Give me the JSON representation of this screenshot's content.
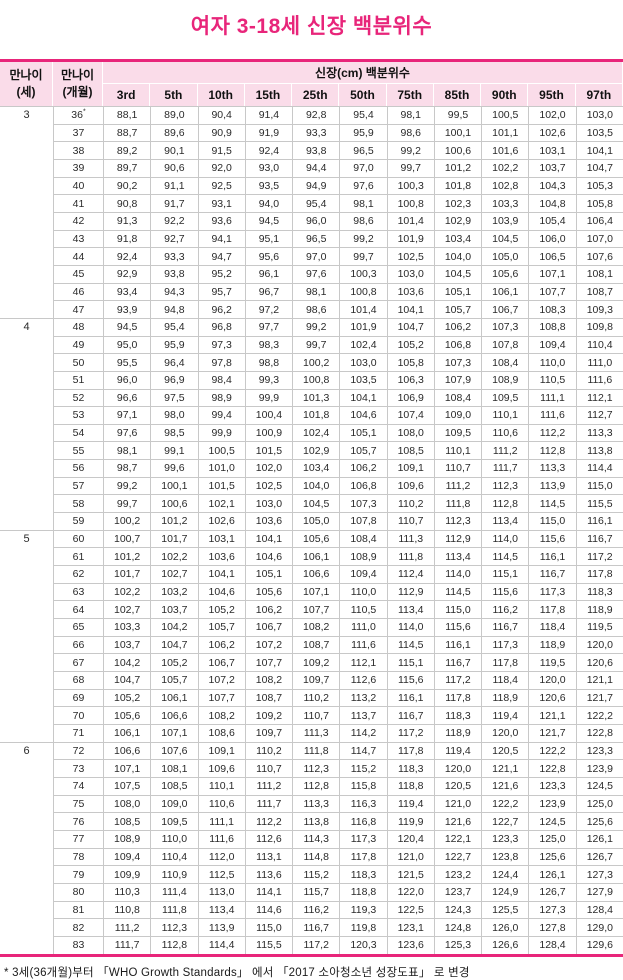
{
  "title": "여자 3-18세 신장 백분위수",
  "footnote": "* 3세(36개월)부터 「WHO Growth Standards」 에서 「2017 소아청소년 성장도표」 로 변경",
  "colors": {
    "accent": "#e8257a",
    "header_bg": "#fadce9",
    "grid": "#c8c8c8"
  },
  "table": {
    "header": {
      "age_years_line1": "만나이",
      "age_years_line2": "(세)",
      "age_months_line1": "만나이",
      "age_months_line2": "(개월)",
      "span_label": "신장(cm) 백분위수",
      "percentiles": [
        "3rd",
        "5th",
        "10th",
        "15th",
        "25th",
        "50th",
        "75th",
        "85th",
        "90th",
        "95th",
        "97th"
      ]
    },
    "rows": [
      {
        "year": "3",
        "year_span": 12,
        "month": "36",
        "month_sup": "*",
        "values": [
          "88,1",
          "89,0",
          "90,4",
          "91,4",
          "92,8",
          "95,4",
          "98,1",
          "99,5",
          "100,5",
          "102,0",
          "103,0"
        ]
      },
      {
        "month": "37",
        "values": [
          "88,7",
          "89,6",
          "90,9",
          "91,9",
          "93,3",
          "95,9",
          "98,6",
          "100,1",
          "101,1",
          "102,6",
          "103,5"
        ]
      },
      {
        "month": "38",
        "values": [
          "89,2",
          "90,1",
          "91,5",
          "92,4",
          "93,8",
          "96,5",
          "99,2",
          "100,6",
          "101,6",
          "103,1",
          "104,1"
        ]
      },
      {
        "month": "39",
        "values": [
          "89,7",
          "90,6",
          "92,0",
          "93,0",
          "94,4",
          "97,0",
          "99,7",
          "101,2",
          "102,2",
          "103,7",
          "104,7"
        ]
      },
      {
        "month": "40",
        "values": [
          "90,2",
          "91,1",
          "92,5",
          "93,5",
          "94,9",
          "97,6",
          "100,3",
          "101,8",
          "102,8",
          "104,3",
          "105,3"
        ]
      },
      {
        "month": "41",
        "values": [
          "90,8",
          "91,7",
          "93,1",
          "94,0",
          "95,4",
          "98,1",
          "100,8",
          "102,3",
          "103,3",
          "104,8",
          "105,8"
        ]
      },
      {
        "month": "42",
        "values": [
          "91,3",
          "92,2",
          "93,6",
          "94,5",
          "96,0",
          "98,6",
          "101,4",
          "102,9",
          "103,9",
          "105,4",
          "106,4"
        ]
      },
      {
        "month": "43",
        "values": [
          "91,8",
          "92,7",
          "94,1",
          "95,1",
          "96,5",
          "99,2",
          "101,9",
          "103,4",
          "104,5",
          "106,0",
          "107,0"
        ]
      },
      {
        "month": "44",
        "values": [
          "92,4",
          "93,3",
          "94,7",
          "95,6",
          "97,0",
          "99,7",
          "102,5",
          "104,0",
          "105,0",
          "106,5",
          "107,6"
        ]
      },
      {
        "month": "45",
        "values": [
          "92,9",
          "93,8",
          "95,2",
          "96,1",
          "97,6",
          "100,3",
          "103,0",
          "104,5",
          "105,6",
          "107,1",
          "108,1"
        ]
      },
      {
        "month": "46",
        "values": [
          "93,4",
          "94,3",
          "95,7",
          "96,7",
          "98,1",
          "100,8",
          "103,6",
          "105,1",
          "106,1",
          "107,7",
          "108,7"
        ]
      },
      {
        "month": "47",
        "values": [
          "93,9",
          "94,8",
          "96,2",
          "97,2",
          "98,6",
          "101,4",
          "104,1",
          "105,7",
          "106,7",
          "108,3",
          "109,3"
        ]
      },
      {
        "year": "4",
        "year_span": 12,
        "month": "48",
        "values": [
          "94,5",
          "95,4",
          "96,8",
          "97,7",
          "99,2",
          "101,9",
          "104,7",
          "106,2",
          "107,3",
          "108,8",
          "109,8"
        ]
      },
      {
        "month": "49",
        "values": [
          "95,0",
          "95,9",
          "97,3",
          "98,3",
          "99,7",
          "102,4",
          "105,2",
          "106,8",
          "107,8",
          "109,4",
          "110,4"
        ]
      },
      {
        "month": "50",
        "values": [
          "95,5",
          "96,4",
          "97,8",
          "98,8",
          "100,2",
          "103,0",
          "105,8",
          "107,3",
          "108,4",
          "110,0",
          "111,0"
        ]
      },
      {
        "month": "51",
        "values": [
          "96,0",
          "96,9",
          "98,4",
          "99,3",
          "100,8",
          "103,5",
          "106,3",
          "107,9",
          "108,9",
          "110,5",
          "111,6"
        ]
      },
      {
        "month": "52",
        "values": [
          "96,6",
          "97,5",
          "98,9",
          "99,9",
          "101,3",
          "104,1",
          "106,9",
          "108,4",
          "109,5",
          "111,1",
          "112,1"
        ]
      },
      {
        "month": "53",
        "values": [
          "97,1",
          "98,0",
          "99,4",
          "100,4",
          "101,8",
          "104,6",
          "107,4",
          "109,0",
          "110,1",
          "111,6",
          "112,7"
        ]
      },
      {
        "month": "54",
        "values": [
          "97,6",
          "98,5",
          "99,9",
          "100,9",
          "102,4",
          "105,1",
          "108,0",
          "109,5",
          "110,6",
          "112,2",
          "113,3"
        ]
      },
      {
        "month": "55",
        "values": [
          "98,1",
          "99,1",
          "100,5",
          "101,5",
          "102,9",
          "105,7",
          "108,5",
          "110,1",
          "111,2",
          "112,8",
          "113,8"
        ]
      },
      {
        "month": "56",
        "values": [
          "98,7",
          "99,6",
          "101,0",
          "102,0",
          "103,4",
          "106,2",
          "109,1",
          "110,7",
          "111,7",
          "113,3",
          "114,4"
        ]
      },
      {
        "month": "57",
        "values": [
          "99,2",
          "100,1",
          "101,5",
          "102,5",
          "104,0",
          "106,8",
          "109,6",
          "111,2",
          "112,3",
          "113,9",
          "115,0"
        ]
      },
      {
        "month": "58",
        "values": [
          "99,7",
          "100,6",
          "102,1",
          "103,0",
          "104,5",
          "107,3",
          "110,2",
          "111,8",
          "112,8",
          "114,5",
          "115,5"
        ]
      },
      {
        "month": "59",
        "values": [
          "100,2",
          "101,2",
          "102,6",
          "103,6",
          "105,0",
          "107,8",
          "110,7",
          "112,3",
          "113,4",
          "115,0",
          "116,1"
        ]
      },
      {
        "year": "5",
        "year_span": 12,
        "month": "60",
        "values": [
          "100,7",
          "101,7",
          "103,1",
          "104,1",
          "105,6",
          "108,4",
          "111,3",
          "112,9",
          "114,0",
          "115,6",
          "116,7"
        ]
      },
      {
        "month": "61",
        "values": [
          "101,2",
          "102,2",
          "103,6",
          "104,6",
          "106,1",
          "108,9",
          "111,8",
          "113,4",
          "114,5",
          "116,1",
          "117,2"
        ]
      },
      {
        "month": "62",
        "values": [
          "101,7",
          "102,7",
          "104,1",
          "105,1",
          "106,6",
          "109,4",
          "112,4",
          "114,0",
          "115,1",
          "116,7",
          "117,8"
        ]
      },
      {
        "month": "63",
        "values": [
          "102,2",
          "103,2",
          "104,6",
          "105,6",
          "107,1",
          "110,0",
          "112,9",
          "114,5",
          "115,6",
          "117,3",
          "118,3"
        ]
      },
      {
        "month": "64",
        "values": [
          "102,7",
          "103,7",
          "105,2",
          "106,2",
          "107,7",
          "110,5",
          "113,4",
          "115,0",
          "116,2",
          "117,8",
          "118,9"
        ]
      },
      {
        "month": "65",
        "values": [
          "103,3",
          "104,2",
          "105,7",
          "106,7",
          "108,2",
          "111,0",
          "114,0",
          "115,6",
          "116,7",
          "118,4",
          "119,5"
        ]
      },
      {
        "month": "66",
        "values": [
          "103,7",
          "104,7",
          "106,2",
          "107,2",
          "108,7",
          "111,6",
          "114,5",
          "116,1",
          "117,3",
          "118,9",
          "120,0"
        ]
      },
      {
        "month": "67",
        "values": [
          "104,2",
          "105,2",
          "106,7",
          "107,7",
          "109,2",
          "112,1",
          "115,1",
          "116,7",
          "117,8",
          "119,5",
          "120,6"
        ]
      },
      {
        "month": "68",
        "values": [
          "104,7",
          "105,7",
          "107,2",
          "108,2",
          "109,7",
          "112,6",
          "115,6",
          "117,2",
          "118,4",
          "120,0",
          "121,1"
        ]
      },
      {
        "month": "69",
        "values": [
          "105,2",
          "106,1",
          "107,7",
          "108,7",
          "110,2",
          "113,2",
          "116,1",
          "117,8",
          "118,9",
          "120,6",
          "121,7"
        ]
      },
      {
        "month": "70",
        "values": [
          "105,6",
          "106,6",
          "108,2",
          "109,2",
          "110,7",
          "113,7",
          "116,7",
          "118,3",
          "119,4",
          "121,1",
          "122,2"
        ]
      },
      {
        "month": "71",
        "values": [
          "106,1",
          "107,1",
          "108,6",
          "109,7",
          "111,3",
          "114,2",
          "117,2",
          "118,9",
          "120,0",
          "121,7",
          "122,8"
        ]
      },
      {
        "year": "6",
        "year_span": 12,
        "month": "72",
        "values": [
          "106,6",
          "107,6",
          "109,1",
          "110,2",
          "111,8",
          "114,7",
          "117,8",
          "119,4",
          "120,5",
          "122,2",
          "123,3"
        ]
      },
      {
        "month": "73",
        "values": [
          "107,1",
          "108,1",
          "109,6",
          "110,7",
          "112,3",
          "115,2",
          "118,3",
          "120,0",
          "121,1",
          "122,8",
          "123,9"
        ]
      },
      {
        "month": "74",
        "values": [
          "107,5",
          "108,5",
          "110,1",
          "111,2",
          "112,8",
          "115,8",
          "118,8",
          "120,5",
          "121,6",
          "123,3",
          "124,5"
        ]
      },
      {
        "month": "75",
        "values": [
          "108,0",
          "109,0",
          "110,6",
          "111,7",
          "113,3",
          "116,3",
          "119,4",
          "121,0",
          "122,2",
          "123,9",
          "125,0"
        ]
      },
      {
        "month": "76",
        "values": [
          "108,5",
          "109,5",
          "111,1",
          "112,2",
          "113,8",
          "116,8",
          "119,9",
          "121,6",
          "122,7",
          "124,5",
          "125,6"
        ]
      },
      {
        "month": "77",
        "values": [
          "108,9",
          "110,0",
          "111,6",
          "112,6",
          "114,3",
          "117,3",
          "120,4",
          "122,1",
          "123,3",
          "125,0",
          "126,1"
        ]
      },
      {
        "month": "78",
        "values": [
          "109,4",
          "110,4",
          "112,0",
          "113,1",
          "114,8",
          "117,8",
          "121,0",
          "122,7",
          "123,8",
          "125,6",
          "126,7"
        ]
      },
      {
        "month": "79",
        "values": [
          "109,9",
          "110,9",
          "112,5",
          "113,6",
          "115,2",
          "118,3",
          "121,5",
          "123,2",
          "124,4",
          "126,1",
          "127,3"
        ]
      },
      {
        "month": "80",
        "values": [
          "110,3",
          "111,4",
          "113,0",
          "114,1",
          "115,7",
          "118,8",
          "122,0",
          "123,7",
          "124,9",
          "126,7",
          "127,9"
        ]
      },
      {
        "month": "81",
        "values": [
          "110,8",
          "111,8",
          "113,4",
          "114,6",
          "116,2",
          "119,3",
          "122,5",
          "124,3",
          "125,5",
          "127,3",
          "128,4"
        ]
      },
      {
        "month": "82",
        "values": [
          "111,2",
          "112,3",
          "113,9",
          "115,0",
          "116,7",
          "119,8",
          "123,1",
          "124,8",
          "126,0",
          "127,8",
          "129,0"
        ]
      },
      {
        "month": "83",
        "values": [
          "111,7",
          "112,8",
          "114,4",
          "115,5",
          "117,2",
          "120,3",
          "123,6",
          "125,3",
          "126,6",
          "128,4",
          "129,6"
        ]
      }
    ]
  }
}
